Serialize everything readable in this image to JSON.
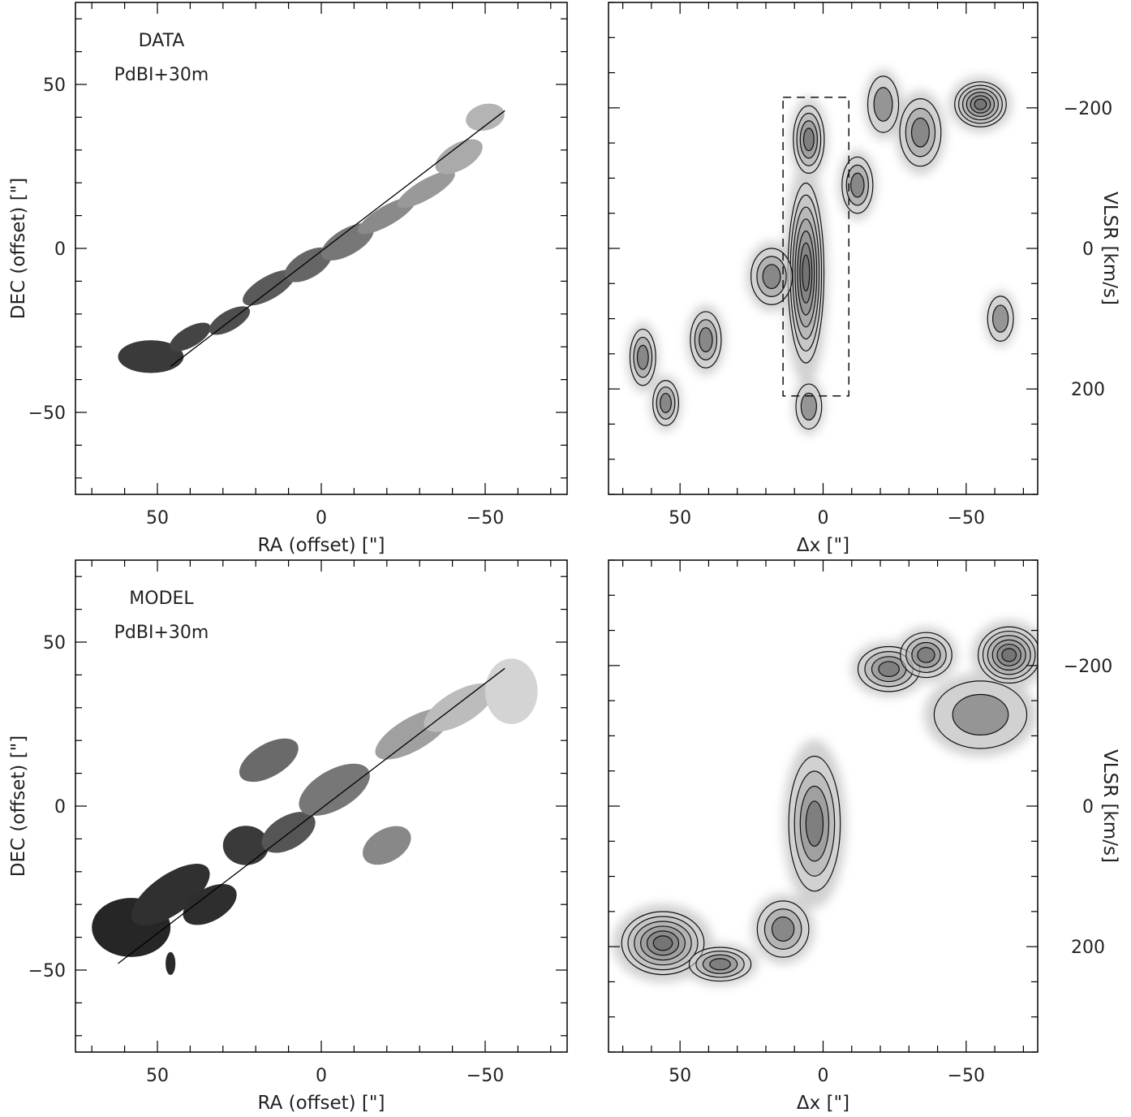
{
  "chart_data": [
    {
      "type": "heatmap",
      "panel": "top-left",
      "labels": [
        "DATA",
        "PdBI+30m"
      ],
      "xlabel": "RA (offset) [\"]",
      "ylabel": "DEC (offset) [\"]",
      "xlim": [
        75,
        -75
      ],
      "ylim": [
        -75,
        75
      ],
      "xticks": [
        50,
        0,
        -50
      ],
      "xtick_labels": [
        "50",
        "0",
        "−50"
      ],
      "yticks": [
        50,
        0,
        -50
      ],
      "ytick_labels": [
        "50",
        "0",
        "−50"
      ],
      "cut_line": [
        [
          46,
          -36
        ],
        [
          -56,
          42
        ]
      ],
      "emission_blobs": [
        {
          "x": 52,
          "y": -33,
          "rx": 10,
          "ry": 5,
          "angle": 0,
          "gray": "#3a3a3a"
        },
        {
          "x": 40,
          "y": -27,
          "rx": 7,
          "ry": 3,
          "angle": -30,
          "gray": "#444444"
        },
        {
          "x": 28,
          "y": -22,
          "rx": 7,
          "ry": 3,
          "angle": -30,
          "gray": "#4e4e4e"
        },
        {
          "x": 16,
          "y": -12,
          "rx": 9,
          "ry": 3.5,
          "angle": -30,
          "gray": "#5a5a5a"
        },
        {
          "x": 4,
          "y": -5,
          "rx": 8,
          "ry": 4,
          "angle": -30,
          "gray": "#666666"
        },
        {
          "x": -8,
          "y": 2,
          "rx": 9,
          "ry": 4,
          "angle": -30,
          "gray": "#777777"
        },
        {
          "x": -20,
          "y": 10,
          "rx": 10,
          "ry": 3,
          "angle": -30,
          "gray": "#8a8a8a"
        },
        {
          "x": -32,
          "y": 18,
          "rx": 10,
          "ry": 3,
          "angle": -30,
          "gray": "#999999"
        },
        {
          "x": -42,
          "y": 28,
          "rx": 8,
          "ry": 4,
          "angle": -30,
          "gray": "#aaaaaa"
        },
        {
          "x": -50,
          "y": 40,
          "rx": 6,
          "ry": 4,
          "angle": -15,
          "gray": "#b4b4b4"
        }
      ]
    },
    {
      "type": "heatmap",
      "panel": "top-right",
      "xlabel": "Δx [\"]",
      "ylabel": "VLSR [km/s]",
      "xlim": [
        75,
        -75
      ],
      "ylim": [
        350,
        -350
      ],
      "xticks": [
        50,
        0,
        -50
      ],
      "xtick_labels": [
        "50",
        "0",
        "−50"
      ],
      "yticks": [
        -200,
        0,
        200
      ],
      "ytick_labels": [
        "−200",
        "0",
        "200"
      ],
      "dashed_box": {
        "x": [
          14,
          -9
        ],
        "v": [
          -215,
          210
        ]
      },
      "contour_sources": [
        {
          "x": 6,
          "v": 35,
          "sx": 3.5,
          "sv": 80,
          "levels": 7
        },
        {
          "x": 5,
          "v": -155,
          "sx": 3,
          "sv": 30,
          "levels": 4
        },
        {
          "x": 18,
          "v": 40,
          "sx": 4,
          "sv": 25,
          "levels": 3
        },
        {
          "x": 41,
          "v": 130,
          "sx": 3,
          "sv": 25,
          "levels": 3
        },
        {
          "x": 55,
          "v": 220,
          "sx": 2.5,
          "sv": 20,
          "levels": 3
        },
        {
          "x": 63,
          "v": 155,
          "sx": 2.5,
          "sv": 25,
          "levels": 3
        },
        {
          "x": -12,
          "v": -90,
          "sx": 3,
          "sv": 25,
          "levels": 3
        },
        {
          "x": -34,
          "v": -165,
          "sx": 4,
          "sv": 30,
          "levels": 3
        },
        {
          "x": -55,
          "v": -205,
          "sx": 5,
          "sv": 20,
          "levels": 6
        },
        {
          "x": 5,
          "v": 225,
          "sx": 2.5,
          "sv": 20,
          "levels": 2
        },
        {
          "x": -21,
          "v": -205,
          "sx": 3,
          "sv": 25,
          "levels": 2
        },
        {
          "x": -62,
          "v": 100,
          "sx": 2.5,
          "sv": 20,
          "levels": 2
        }
      ]
    },
    {
      "type": "heatmap",
      "panel": "bottom-left",
      "labels": [
        "MODEL",
        "PdBI+30m"
      ],
      "xlabel": "RA (offset) [\"]",
      "ylabel": "DEC (offset) [\"]",
      "xlim": [
        75,
        -75
      ],
      "ylim": [
        -75,
        75
      ],
      "xticks": [
        50,
        0,
        -50
      ],
      "xtick_labels": [
        "50",
        "0",
        "−50"
      ],
      "yticks": [
        50,
        0,
        -50
      ],
      "ytick_labels": [
        "50",
        "0",
        "−50"
      ],
      "cut_line": [
        [
          62,
          -48
        ],
        [
          -56,
          42
        ]
      ],
      "emission_blobs": [
        {
          "x": 58,
          "y": -37,
          "rx": 12,
          "ry": 9,
          "angle": 0,
          "gray": "#262626"
        },
        {
          "x": 46,
          "y": -27,
          "rx": 14,
          "ry": 6,
          "angle": -35,
          "gray": "#303030"
        },
        {
          "x": 34,
          "y": -30,
          "rx": 9,
          "ry": 5,
          "angle": -30,
          "gray": "#2e2e2e"
        },
        {
          "x": 23,
          "y": -12,
          "rx": 7,
          "ry": 6,
          "angle": 0,
          "gray": "#3a3a3a"
        },
        {
          "x": 10,
          "y": -8,
          "rx": 9,
          "ry": 5,
          "angle": -30,
          "gray": "#555555"
        },
        {
          "x": -4,
          "y": 5,
          "rx": 12,
          "ry": 6,
          "angle": -30,
          "gray": "#777777"
        },
        {
          "x": 16,
          "y": 14,
          "rx": 10,
          "ry": 5,
          "angle": -30,
          "gray": "#6a6a6a"
        },
        {
          "x": -20,
          "y": -12,
          "rx": 8,
          "ry": 5,
          "angle": -30,
          "gray": "#888888"
        },
        {
          "x": -28,
          "y": 22,
          "rx": 13,
          "ry": 5,
          "angle": -30,
          "gray": "#a0a0a0"
        },
        {
          "x": -42,
          "y": 30,
          "rx": 12,
          "ry": 5,
          "angle": -30,
          "gray": "#bcbcbc"
        },
        {
          "x": -58,
          "y": 35,
          "rx": 8,
          "ry": 10,
          "angle": 0,
          "gray": "#d4d4d4"
        },
        {
          "x": 46,
          "y": -48,
          "rx": 1.5,
          "ry": 3.5,
          "angle": 0,
          "gray": "#2a2a2a"
        }
      ]
    },
    {
      "type": "heatmap",
      "panel": "bottom-right",
      "xlabel": "Δx [\"]",
      "ylabel": "VLSR [km/s]",
      "xlim": [
        75,
        -75
      ],
      "ylim": [
        350,
        -350
      ],
      "xticks": [
        50,
        0,
        -50
      ],
      "xtick_labels": [
        "50",
        "0",
        "−50"
      ],
      "yticks": [
        -200,
        0,
        200
      ],
      "ytick_labels": [
        "−200",
        "0",
        "200"
      ],
      "contour_sources": [
        {
          "x": 56,
          "v": 195,
          "sx": 8,
          "sv": 28,
          "levels": 6
        },
        {
          "x": 36,
          "v": 225,
          "sx": 6,
          "sv": 15,
          "levels": 4
        },
        {
          "x": 14,
          "v": 175,
          "sx": 5,
          "sv": 25,
          "levels": 3
        },
        {
          "x": 3,
          "v": 25,
          "sx": 5,
          "sv": 60,
          "levels": 4
        },
        {
          "x": -23,
          "v": -195,
          "sx": 6,
          "sv": 20,
          "levels": 4
        },
        {
          "x": -36,
          "v": -215,
          "sx": 5,
          "sv": 20,
          "levels": 4
        },
        {
          "x": -65,
          "v": -215,
          "sx": 6,
          "sv": 25,
          "levels": 6
        },
        {
          "x": -55,
          "v": -130,
          "sx": 9,
          "sv": 30,
          "levels": 2
        }
      ]
    }
  ]
}
